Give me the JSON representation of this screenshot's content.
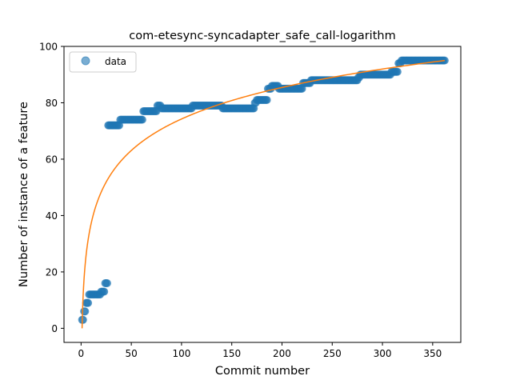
{
  "chart_data": {
    "type": "scatter",
    "title": "com-etesync-syncadapter_safe_call-logarithm",
    "xlabel": "Commit number",
    "ylabel": "Number of instance of a feature",
    "xlim": [
      -17,
      378
    ],
    "ylim": [
      -5,
      100
    ],
    "xticks": [
      0,
      50,
      100,
      150,
      200,
      250,
      300,
      350
    ],
    "yticks": [
      0,
      20,
      40,
      60,
      80,
      100
    ],
    "grid": false,
    "legend": {
      "placement": "top-left",
      "entries": [
        "data"
      ]
    },
    "colors": {
      "scatter": "#1f77b4",
      "fit": "#ff7f0e"
    },
    "series": [
      {
        "name": "data",
        "kind": "scatter",
        "segments": [
          {
            "x_from": 1,
            "x_to": 2,
            "y": 3
          },
          {
            "x_from": 3,
            "x_to": 4,
            "y": 6
          },
          {
            "x_from": 5,
            "x_to": 7,
            "y": 9
          },
          {
            "x_from": 8,
            "x_to": 19,
            "y": 12
          },
          {
            "x_from": 20,
            "x_to": 23,
            "y": 13
          },
          {
            "x_from": 24,
            "x_to": 26,
            "y": 16
          },
          {
            "x_from": 27,
            "x_to": 38,
            "y": 72
          },
          {
            "x_from": 39,
            "x_to": 61,
            "y": 74
          },
          {
            "x_from": 62,
            "x_to": 75,
            "y": 77
          },
          {
            "x_from": 76,
            "x_to": 79,
            "y": 79
          },
          {
            "x_from": 80,
            "x_to": 110,
            "y": 78
          },
          {
            "x_from": 111,
            "x_to": 140,
            "y": 79
          },
          {
            "x_from": 141,
            "x_to": 172,
            "y": 78
          },
          {
            "x_from": 173,
            "x_to": 174,
            "y": 80
          },
          {
            "x_from": 175,
            "x_to": 185,
            "y": 81
          },
          {
            "x_from": 186,
            "x_to": 189,
            "y": 85
          },
          {
            "x_from": 190,
            "x_to": 196,
            "y": 86
          },
          {
            "x_from": 197,
            "x_to": 220,
            "y": 85
          },
          {
            "x_from": 221,
            "x_to": 228,
            "y": 87
          },
          {
            "x_from": 229,
            "x_to": 275,
            "y": 88
          },
          {
            "x_from": 276,
            "x_to": 277,
            "y": 89
          },
          {
            "x_from": 278,
            "x_to": 308,
            "y": 90
          },
          {
            "x_from": 309,
            "x_to": 315,
            "y": 91
          },
          {
            "x_from": 316,
            "x_to": 318,
            "y": 94
          },
          {
            "x_from": 319,
            "x_to": 362,
            "y": 95
          }
        ]
      },
      {
        "name": "",
        "kind": "line",
        "function": "logarithmic",
        "x_range": [
          1,
          362
        ],
        "anchor_points": [
          [
            1,
            0
          ],
          [
            362,
            95
          ]
        ]
      }
    ]
  }
}
